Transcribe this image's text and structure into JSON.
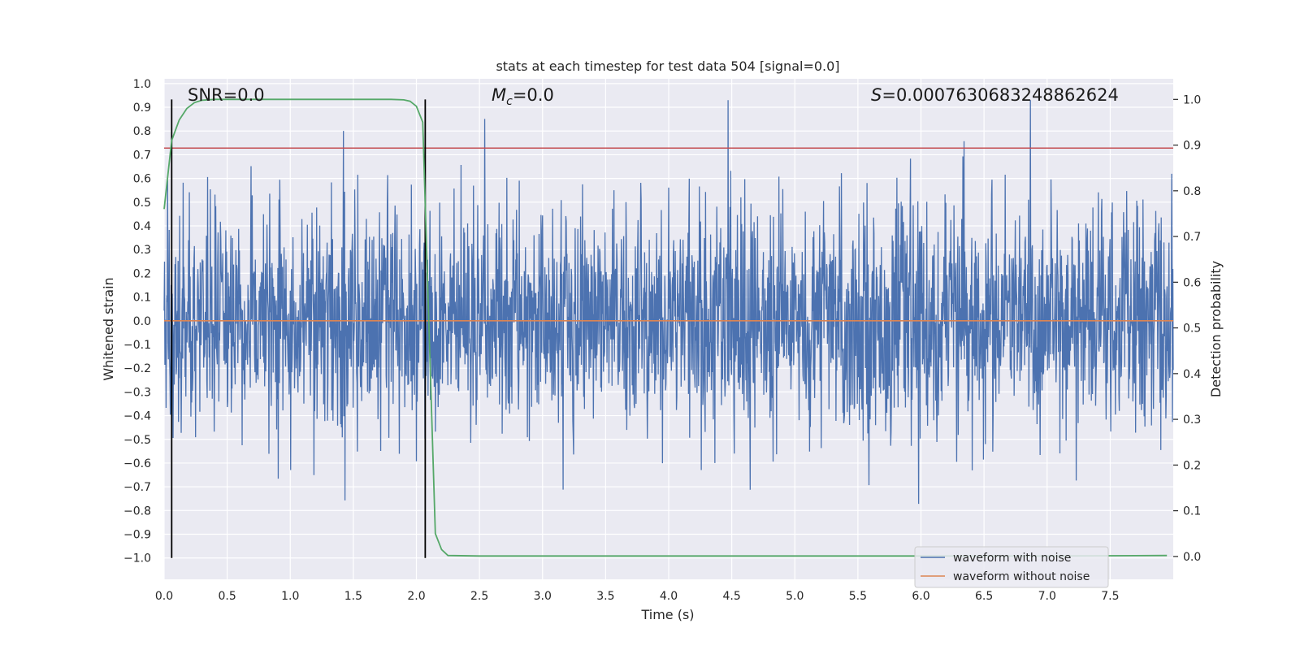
{
  "chart_data": {
    "type": "line",
    "title": "stats at each timestep for test data 504 [signal=0.0]",
    "xlabel": "Time (s)",
    "ylabel": "Whitened strain",
    "ylabel_right": "Detection probability",
    "xlim": [
      0.0,
      8.0
    ],
    "ylim": [
      -1.09,
      1.02
    ],
    "ylim_right": [
      -0.05,
      1.045
    ],
    "x_ticks": [
      "0.0",
      "0.5",
      "1.0",
      "1.5",
      "2.0",
      "2.5",
      "3.0",
      "3.5",
      "4.0",
      "4.5",
      "5.0",
      "5.5",
      "6.0",
      "6.5",
      "7.0",
      "7.5"
    ],
    "y_ticks": [
      "1.0",
      "0.9",
      "0.8",
      "0.7",
      "0.6",
      "0.5",
      "0.4",
      "0.3",
      "0.2",
      "0.1",
      "0.0",
      "−0.1",
      "−0.2",
      "−0.3",
      "−0.4",
      "−0.5",
      "−0.6",
      "−0.7",
      "−0.8",
      "−0.9",
      "−1.0"
    ],
    "y_right_ticks": [
      "1.0",
      "0.9",
      "0.8",
      "0.7",
      "0.6",
      "0.5",
      "0.4",
      "0.3",
      "0.2",
      "0.1",
      "0.0"
    ],
    "annotations": {
      "snr": "SNR=0.0",
      "mc_symbol": "M",
      "mc_sub": "c",
      "mc_value": "=0.0",
      "s_symbol": "S",
      "s_value": "=0.0007630683248862624"
    },
    "vlines_x": [
      0.06,
      2.07
    ],
    "hline_red": 0.728,
    "noise_amplitude": 0.28,
    "series": [
      {
        "name": "waveform with noise",
        "color": "#4c72b0"
      },
      {
        "name": "waveform without noise",
        "color": "#dd8452",
        "constant": 0.0
      }
    ],
    "detection_probability": {
      "color": "#55a868",
      "x": [
        0.0,
        0.06,
        0.12,
        0.18,
        0.24,
        0.3,
        0.4,
        0.6,
        1.0,
        1.5,
        1.8,
        1.9,
        1.95,
        2.0,
        2.05,
        2.1,
        2.15,
        2.2,
        2.25,
        2.5,
        3.0,
        4.0,
        5.0,
        6.0,
        7.0,
        7.95
      ],
      "y": [
        0.76,
        0.91,
        0.955,
        0.98,
        0.993,
        0.998,
        1.0,
        1.0,
        1.0,
        1.0,
        1.0,
        0.999,
        0.996,
        0.985,
        0.95,
        0.5,
        0.05,
        0.015,
        0.002,
        0.001,
        0.001,
        0.001,
        0.001,
        0.001,
        0.001,
        0.002
      ]
    },
    "legend": {
      "position": "lower-right",
      "entries": [
        "waveform with noise",
        "waveform without noise"
      ]
    },
    "grid": true
  }
}
